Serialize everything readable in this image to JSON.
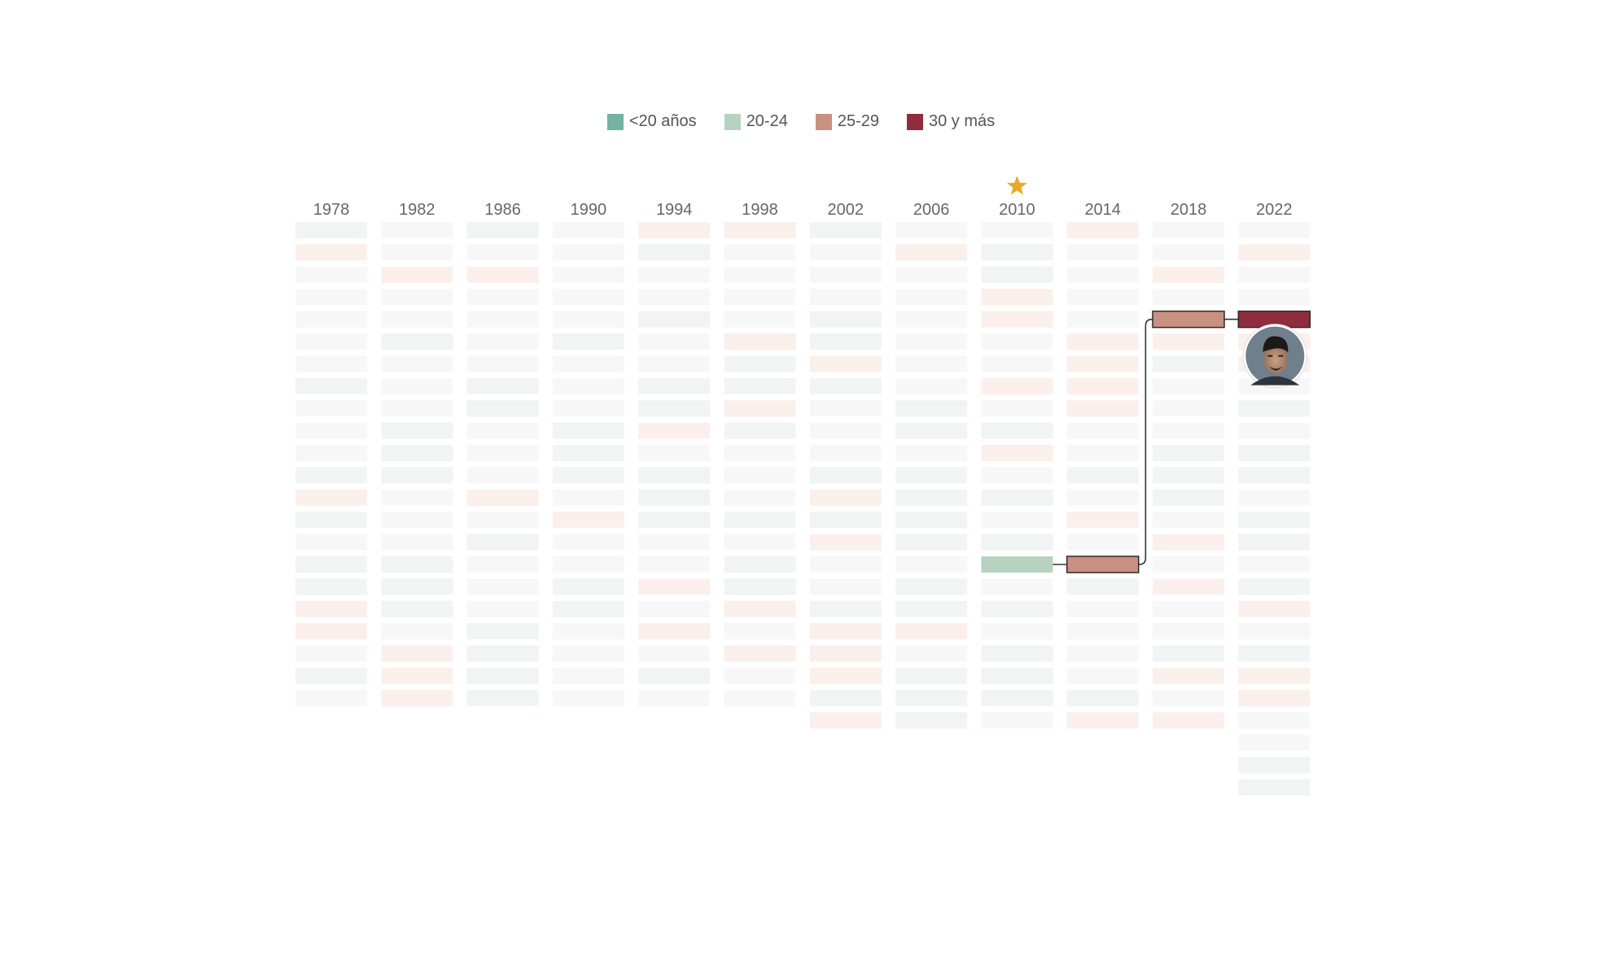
{
  "legend": [
    {
      "label": "<20 años",
      "color": "#73b3a0"
    },
    {
      "label": "20-24",
      "color": "#b7d3bf"
    },
    {
      "label": "25-29",
      "color": "#c99081"
    },
    {
      "label": "30 y más",
      "color": "#8f2c3e"
    }
  ],
  "chart_data": {
    "type": "heatmap",
    "title": "",
    "categories": [
      "1978",
      "1982",
      "1986",
      "1990",
      "1994",
      "1998",
      "2002",
      "2006",
      "2010",
      "2014",
      "2018",
      "2022"
    ],
    "squad_sizes": [
      22,
      22,
      22,
      22,
      22,
      22,
      23,
      23,
      23,
      23,
      23,
      26
    ],
    "age_groups": [
      "<20 años",
      "20-24",
      "25-29",
      "30 y más"
    ],
    "squads": [
      [
        1,
        3,
        2,
        2,
        2,
        2,
        2,
        1,
        2,
        2,
        2,
        1,
        3,
        1,
        2,
        1,
        1,
        3,
        3,
        2,
        1,
        2
      ],
      [
        2,
        2,
        3,
        2,
        2,
        1,
        2,
        2,
        2,
        1,
        1,
        1,
        2,
        2,
        2,
        1,
        1,
        1,
        2,
        3,
        3,
        3
      ],
      [
        1,
        2,
        3,
        2,
        2,
        2,
        2,
        1,
        1,
        2,
        2,
        2,
        3,
        2,
        1,
        2,
        2,
        2,
        1,
        1,
        1,
        1
      ],
      [
        2,
        2,
        2,
        2,
        2,
        1,
        2,
        2,
        2,
        1,
        1,
        1,
        2,
        3,
        2,
        2,
        1,
        1,
        2,
        2,
        2,
        2
      ],
      [
        3,
        1,
        2,
        2,
        1,
        2,
        2,
        1,
        1,
        3,
        2,
        1,
        1,
        1,
        2,
        2,
        3,
        2,
        3,
        2,
        1,
        2
      ],
      [
        3,
        2,
        2,
        2,
        2,
        3,
        1,
        1,
        3,
        1,
        2,
        2,
        2,
        1,
        2,
        1,
        1,
        3,
        2,
        3,
        2,
        2
      ],
      [
        1,
        2,
        2,
        2,
        1,
        1,
        3,
        1,
        2,
        2,
        2,
        1,
        3,
        1,
        3,
        2,
        2,
        1,
        3,
        3,
        3,
        1,
        3
      ],
      [
        2,
        3,
        2,
        2,
        2,
        2,
        2,
        2,
        1,
        1,
        2,
        1,
        1,
        1,
        1,
        2,
        1,
        1,
        3,
        2,
        1,
        1,
        1
      ],
      [
        2,
        1,
        1,
        3,
        3,
        2,
        2,
        3,
        2,
        1,
        3,
        2,
        1,
        2,
        1,
        1,
        2,
        1,
        2,
        1,
        1,
        1,
        2
      ],
      [
        3,
        2,
        2,
        2,
        2,
        3,
        3,
        3,
        3,
        2,
        2,
        1,
        2,
        3,
        2,
        2,
        1,
        2,
        2,
        2,
        2,
        1,
        3
      ],
      [
        2,
        2,
        3,
        2,
        3,
        3,
        1,
        2,
        2,
        2,
        1,
        1,
        1,
        2,
        3,
        2,
        3,
        2,
        2,
        1,
        3,
        2,
        3
      ],
      [
        2,
        3,
        2,
        2,
        4,
        3,
        3,
        2,
        1,
        2,
        1,
        1,
        2,
        1,
        1,
        2,
        1,
        3,
        2,
        1,
        3,
        3,
        2,
        2,
        1,
        1
      ]
    ],
    "highlight": {
      "appearances": [
        {
          "year": "2010",
          "age_group": "20-24"
        },
        {
          "year": "2014",
          "age_group": "25-29"
        },
        {
          "year": "2018",
          "age_group": "25-29"
        },
        {
          "year": "2022",
          "age_group": "30 y más"
        }
      ],
      "champion_year": "2010",
      "photo": "player-portrait"
    }
  }
}
